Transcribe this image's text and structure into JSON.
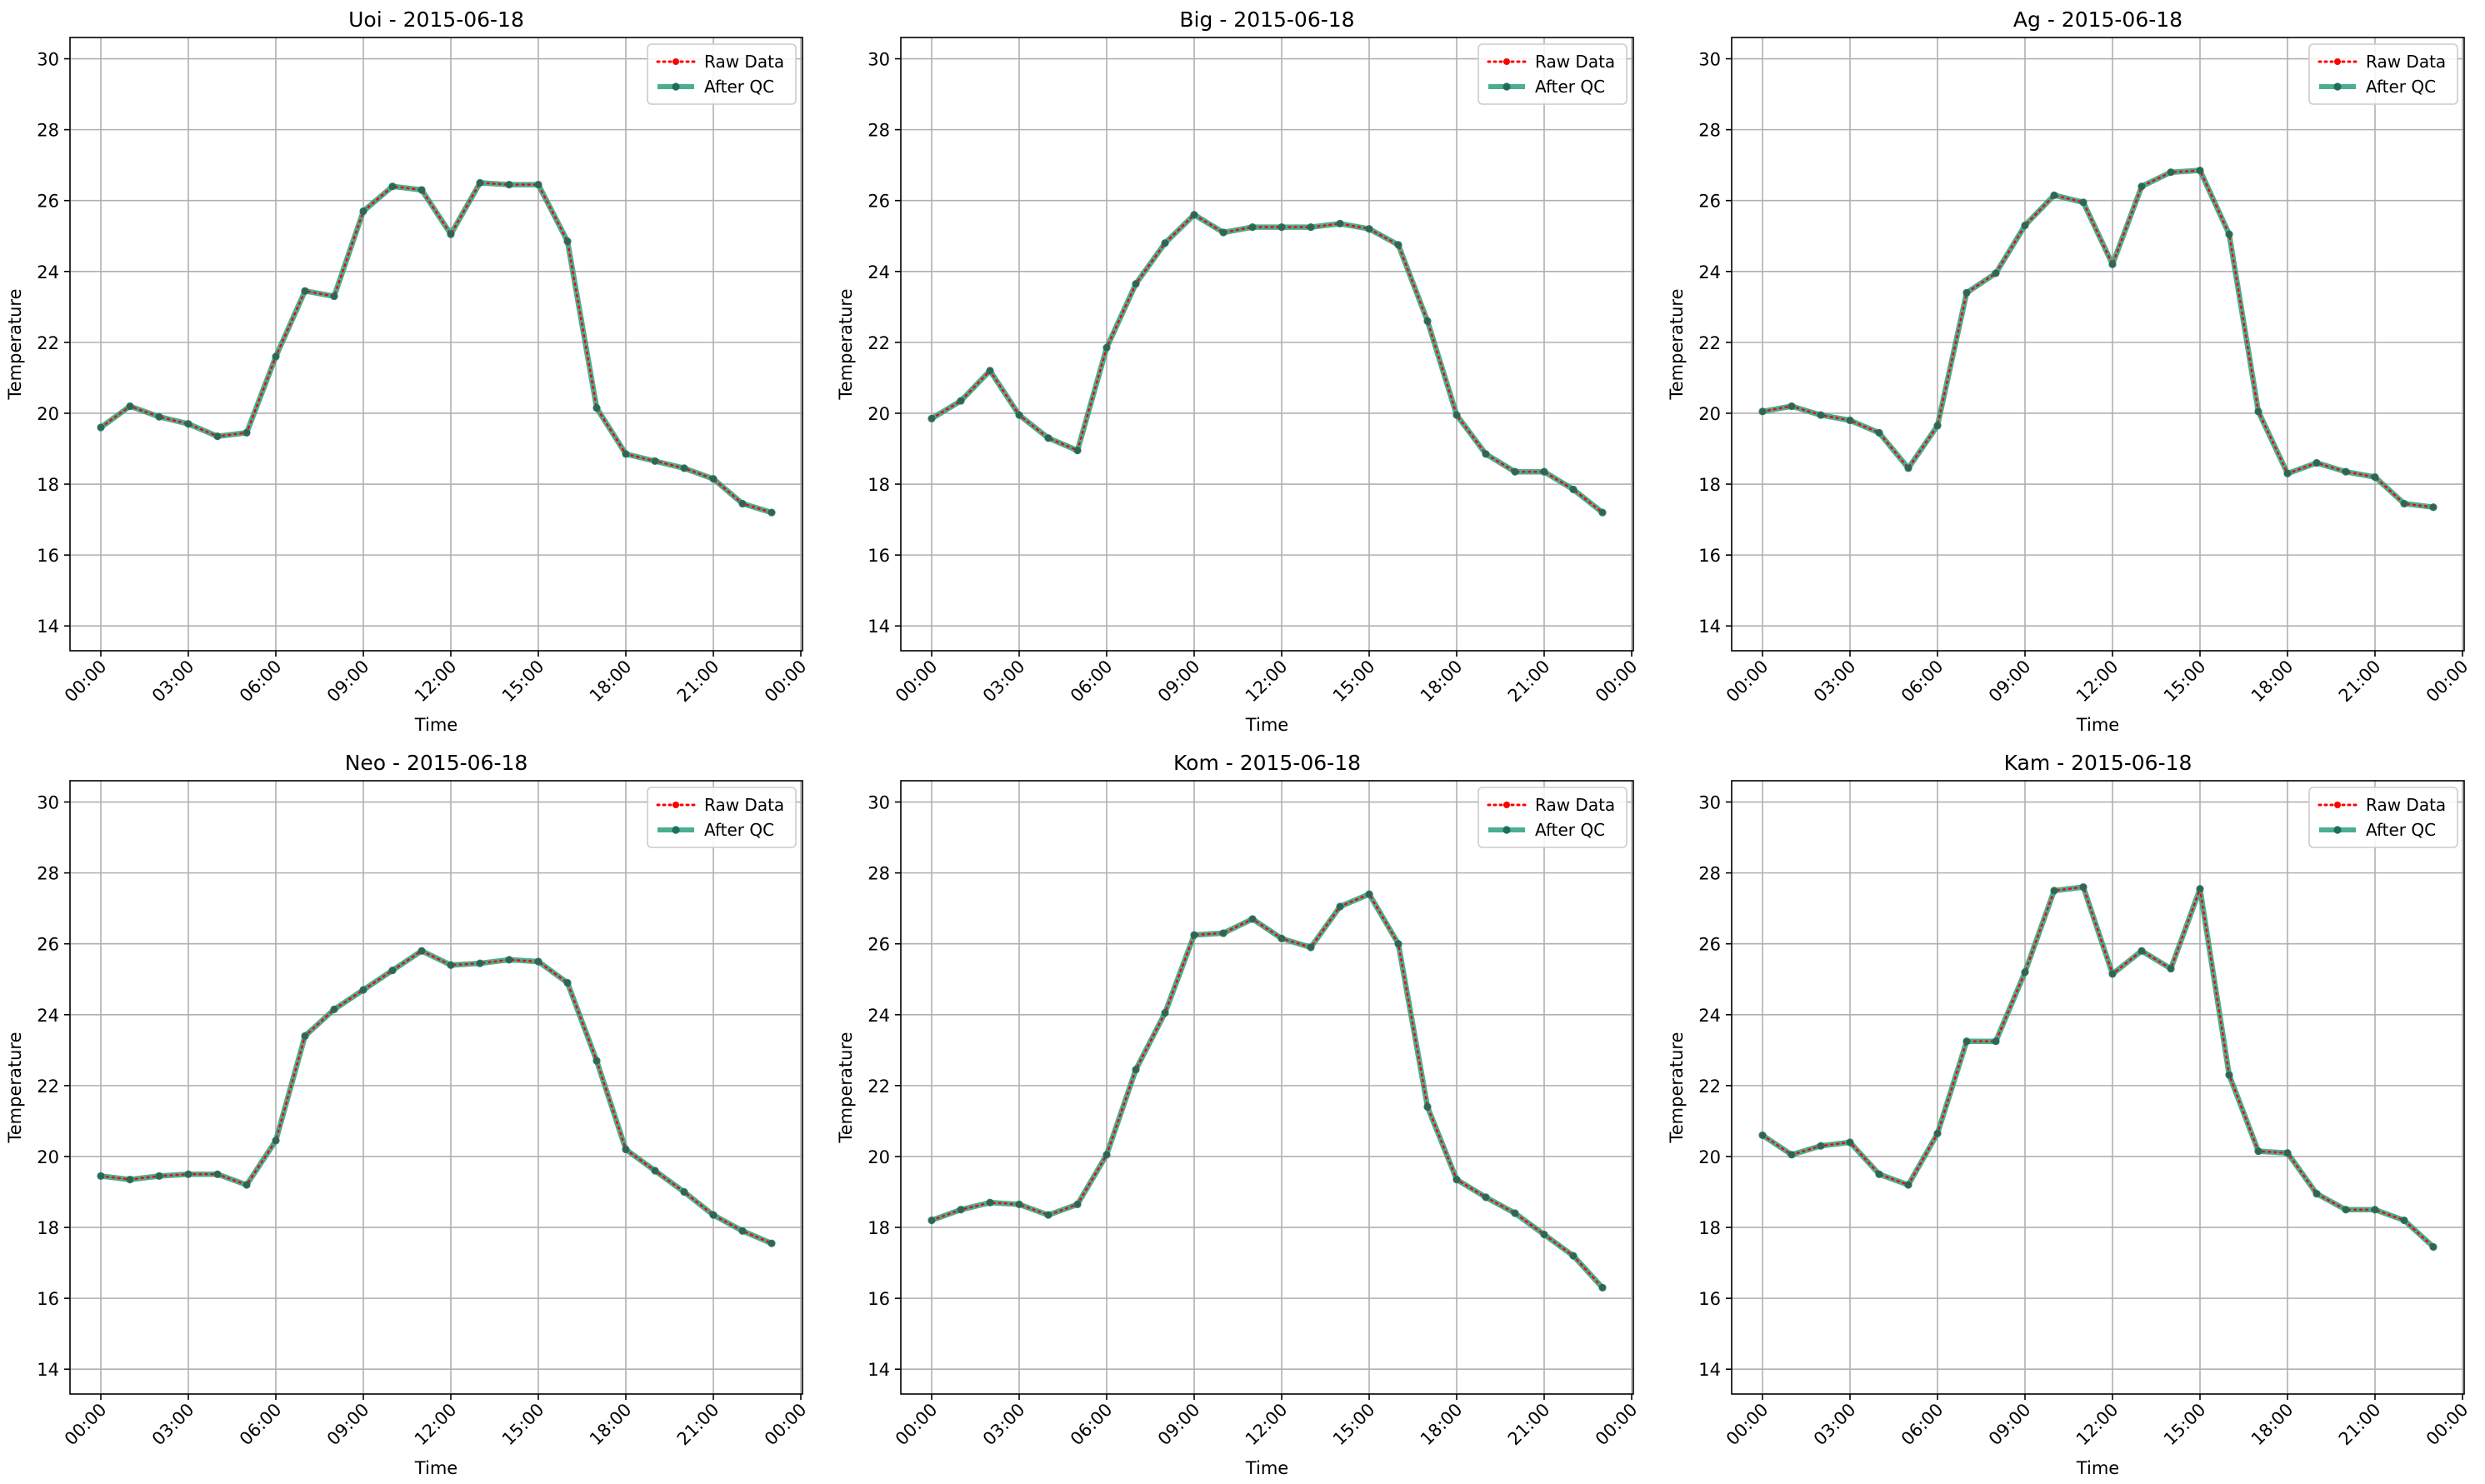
{
  "figure": {
    "background": "#ffffff"
  },
  "style": {
    "raw_color": "#ff0000",
    "qc_color": "#2ca07e",
    "qc_marker_color": "#1f6e5a",
    "grid_color": "#b0b0b0"
  },
  "legend": {
    "placement": "upper right",
    "raw_label": "Raw Data",
    "qc_label": "After QC"
  },
  "chart_data": [
    {
      "type": "line",
      "title": "Uoi - 2015-06-18",
      "xlabel": "Time",
      "ylabel": "Temperature",
      "x_ticks": [
        "00:00",
        "03:00",
        "06:00",
        "09:00",
        "12:00",
        "15:00",
        "18:00",
        "21:00",
        "00:00"
      ],
      "y_ticks": [
        14,
        16,
        18,
        20,
        22,
        24,
        26,
        28,
        30
      ],
      "ylim": [
        13.3,
        30.6
      ],
      "grid": true,
      "x": [
        "00:00",
        "01:00",
        "02:00",
        "03:00",
        "04:00",
        "05:00",
        "06:00",
        "07:00",
        "08:00",
        "09:00",
        "10:00",
        "11:00",
        "12:00",
        "13:00",
        "14:00",
        "15:00",
        "16:00",
        "17:00",
        "18:00",
        "19:00",
        "20:00",
        "21:00",
        "22:00",
        "23:00"
      ],
      "series": [
        {
          "name": "Raw Data",
          "values": [
            19.6,
            20.2,
            19.9,
            19.7,
            19.35,
            19.45,
            21.6,
            23.45,
            23.3,
            25.7,
            26.4,
            26.3,
            25.05,
            26.5,
            26.45,
            26.45,
            24.85,
            20.15,
            18.85,
            18.65,
            18.45,
            18.15,
            17.45,
            17.2
          ]
        },
        {
          "name": "After QC",
          "values": [
            19.6,
            20.2,
            19.9,
            19.7,
            19.35,
            19.45,
            21.6,
            23.45,
            23.3,
            25.7,
            26.4,
            26.3,
            25.05,
            26.5,
            26.45,
            26.45,
            24.85,
            20.15,
            18.85,
            18.65,
            18.45,
            18.15,
            17.45,
            17.2
          ]
        }
      ]
    },
    {
      "type": "line",
      "title": "Big - 2015-06-18",
      "xlabel": "Time",
      "ylabel": "Temperature",
      "x_ticks": [
        "00:00",
        "03:00",
        "06:00",
        "09:00",
        "12:00",
        "15:00",
        "18:00",
        "21:00",
        "00:00"
      ],
      "y_ticks": [
        14,
        16,
        18,
        20,
        22,
        24,
        26,
        28,
        30
      ],
      "ylim": [
        13.3,
        30.6
      ],
      "grid": true,
      "x": [
        "00:00",
        "01:00",
        "02:00",
        "03:00",
        "04:00",
        "05:00",
        "06:00",
        "07:00",
        "08:00",
        "09:00",
        "10:00",
        "11:00",
        "12:00",
        "13:00",
        "14:00",
        "15:00",
        "16:00",
        "17:00",
        "18:00",
        "19:00",
        "20:00",
        "21:00",
        "22:00",
        "23:00"
      ],
      "series": [
        {
          "name": "Raw Data",
          "values": [
            19.85,
            20.35,
            21.2,
            19.95,
            19.3,
            18.95,
            21.85,
            23.65,
            24.8,
            25.6,
            25.1,
            25.25,
            25.25,
            25.25,
            25.35,
            25.2,
            24.75,
            22.6,
            19.95,
            18.85,
            18.35,
            18.35,
            17.85,
            17.2
          ]
        },
        {
          "name": "After QC",
          "values": [
            19.85,
            20.35,
            21.2,
            19.95,
            19.3,
            18.95,
            21.85,
            23.65,
            24.8,
            25.6,
            25.1,
            25.25,
            25.25,
            25.25,
            25.35,
            25.2,
            24.75,
            22.6,
            19.95,
            18.85,
            18.35,
            18.35,
            17.85,
            17.2
          ]
        }
      ]
    },
    {
      "type": "line",
      "title": "Ag - 2015-06-18",
      "xlabel": "Time",
      "ylabel": "Temperature",
      "x_ticks": [
        "00:00",
        "03:00",
        "06:00",
        "09:00",
        "12:00",
        "15:00",
        "18:00",
        "21:00",
        "00:00"
      ],
      "y_ticks": [
        14,
        16,
        18,
        20,
        22,
        24,
        26,
        28,
        30
      ],
      "ylim": [
        13.3,
        30.6
      ],
      "grid": true,
      "x": [
        "00:00",
        "01:00",
        "02:00",
        "03:00",
        "04:00",
        "05:00",
        "06:00",
        "07:00",
        "08:00",
        "09:00",
        "10:00",
        "11:00",
        "12:00",
        "13:00",
        "14:00",
        "15:00",
        "16:00",
        "17:00",
        "18:00",
        "19:00",
        "20:00",
        "21:00",
        "22:00",
        "23:00"
      ],
      "series": [
        {
          "name": "Raw Data",
          "values": [
            20.05,
            20.2,
            19.95,
            19.8,
            19.45,
            18.45,
            19.65,
            23.4,
            23.95,
            25.3,
            26.15,
            25.95,
            24.2,
            26.4,
            26.8,
            26.85,
            25.05,
            20.05,
            18.3,
            18.6,
            18.35,
            18.2,
            17.45,
            17.35
          ]
        },
        {
          "name": "After QC",
          "values": [
            20.05,
            20.2,
            19.95,
            19.8,
            19.45,
            18.45,
            19.65,
            23.4,
            23.95,
            25.3,
            26.15,
            25.95,
            24.2,
            26.4,
            26.8,
            26.85,
            25.05,
            20.05,
            18.3,
            18.6,
            18.35,
            18.2,
            17.45,
            17.35
          ]
        }
      ]
    },
    {
      "type": "line",
      "title": "Neo - 2015-06-18",
      "xlabel": "Time",
      "ylabel": "Temperature",
      "x_ticks": [
        "00:00",
        "03:00",
        "06:00",
        "09:00",
        "12:00",
        "15:00",
        "18:00",
        "21:00",
        "00:00"
      ],
      "y_ticks": [
        14,
        16,
        18,
        20,
        22,
        24,
        26,
        28,
        30
      ],
      "ylim": [
        13.3,
        30.6
      ],
      "grid": true,
      "x": [
        "00:00",
        "01:00",
        "02:00",
        "03:00",
        "04:00",
        "05:00",
        "06:00",
        "07:00",
        "08:00",
        "09:00",
        "10:00",
        "11:00",
        "12:00",
        "13:00",
        "14:00",
        "15:00",
        "16:00",
        "17:00",
        "18:00",
        "19:00",
        "20:00",
        "21:00",
        "22:00",
        "23:00"
      ],
      "series": [
        {
          "name": "Raw Data",
          "values": [
            19.45,
            19.35,
            19.45,
            19.5,
            19.5,
            19.2,
            20.45,
            23.4,
            24.15,
            24.7,
            25.25,
            25.8,
            25.4,
            25.45,
            25.55,
            25.5,
            24.9,
            22.7,
            20.2,
            19.6,
            19.0,
            18.35,
            17.9,
            17.55
          ]
        },
        {
          "name": "After QC",
          "values": [
            19.45,
            19.35,
            19.45,
            19.5,
            19.5,
            19.2,
            20.45,
            23.4,
            24.15,
            24.7,
            25.25,
            25.8,
            25.4,
            25.45,
            25.55,
            25.5,
            24.9,
            22.7,
            20.2,
            19.6,
            19.0,
            18.35,
            17.9,
            17.55
          ]
        }
      ]
    },
    {
      "type": "line",
      "title": "Kom - 2015-06-18",
      "xlabel": "Time",
      "ylabel": "Temperature",
      "x_ticks": [
        "00:00",
        "03:00",
        "06:00",
        "09:00",
        "12:00",
        "15:00",
        "18:00",
        "21:00",
        "00:00"
      ],
      "y_ticks": [
        14,
        16,
        18,
        20,
        22,
        24,
        26,
        28,
        30
      ],
      "ylim": [
        13.3,
        30.6
      ],
      "grid": true,
      "x": [
        "00:00",
        "01:00",
        "02:00",
        "03:00",
        "04:00",
        "05:00",
        "06:00",
        "07:00",
        "08:00",
        "09:00",
        "10:00",
        "11:00",
        "12:00",
        "13:00",
        "14:00",
        "15:00",
        "16:00",
        "17:00",
        "18:00",
        "19:00",
        "20:00",
        "21:00",
        "22:00",
        "23:00"
      ],
      "series": [
        {
          "name": "Raw Data",
          "values": [
            18.2,
            18.5,
            18.7,
            18.65,
            18.35,
            18.65,
            20.05,
            22.45,
            24.05,
            26.25,
            26.3,
            26.7,
            26.15,
            25.9,
            27.05,
            27.4,
            26.0,
            21.4,
            19.35,
            18.85,
            18.4,
            17.8,
            17.2,
            16.3
          ]
        },
        {
          "name": "After QC",
          "values": [
            18.2,
            18.5,
            18.7,
            18.65,
            18.35,
            18.65,
            20.05,
            22.45,
            24.05,
            26.25,
            26.3,
            26.7,
            26.15,
            25.9,
            27.05,
            27.4,
            26.0,
            21.4,
            19.35,
            18.85,
            18.4,
            17.8,
            17.2,
            16.3
          ]
        }
      ]
    },
    {
      "type": "line",
      "title": "Kam - 2015-06-18",
      "xlabel": "Time",
      "ylabel": "Temperature",
      "x_ticks": [
        "00:00",
        "03:00",
        "06:00",
        "09:00",
        "12:00",
        "15:00",
        "18:00",
        "21:00",
        "00:00"
      ],
      "y_ticks": [
        14,
        16,
        18,
        20,
        22,
        24,
        26,
        28,
        30
      ],
      "ylim": [
        13.3,
        30.6
      ],
      "grid": true,
      "x": [
        "00:00",
        "01:00",
        "02:00",
        "03:00",
        "04:00",
        "05:00",
        "06:00",
        "07:00",
        "08:00",
        "09:00",
        "10:00",
        "11:00",
        "12:00",
        "13:00",
        "14:00",
        "15:00",
        "16:00",
        "17:00",
        "18:00",
        "19:00",
        "20:00",
        "21:00",
        "22:00",
        "23:00"
      ],
      "series": [
        {
          "name": "Raw Data",
          "values": [
            20.6,
            20.05,
            20.3,
            20.4,
            19.5,
            19.2,
            20.65,
            23.25,
            23.25,
            25.2,
            27.5,
            27.6,
            25.15,
            25.8,
            25.3,
            27.55,
            22.3,
            20.15,
            20.1,
            18.95,
            18.5,
            18.5,
            18.2,
            17.45
          ]
        },
        {
          "name": "After QC",
          "values": [
            20.6,
            20.05,
            20.3,
            20.4,
            19.5,
            19.2,
            20.65,
            23.25,
            23.25,
            25.2,
            27.5,
            27.6,
            25.15,
            25.8,
            25.3,
            27.55,
            22.3,
            20.15,
            20.1,
            18.95,
            18.5,
            18.5,
            18.2,
            17.45
          ]
        }
      ]
    }
  ]
}
